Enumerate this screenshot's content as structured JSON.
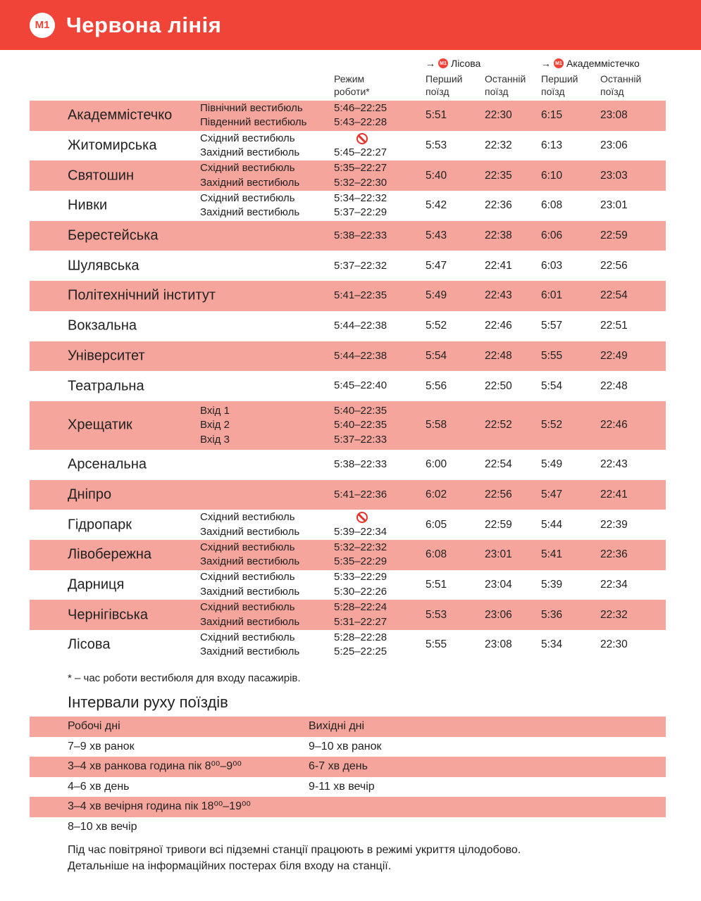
{
  "header": {
    "logo": "M1",
    "title": "Червона лінія"
  },
  "columns": {
    "regime": "Режим роботи*",
    "dir1": "Лісова",
    "dir2": "Академмістечко",
    "first": "Перший поїзд",
    "last": "Останній поїзд",
    "badge": "M1"
  },
  "stations": [
    {
      "name": "Академмістечко",
      "entrances": [
        {
          "name": "Північний вестибюль",
          "hours": "5:46–22:25"
        },
        {
          "name": "Південний вестибюль",
          "hours": "5:43–22:28"
        }
      ],
      "to_lisova": [
        "5:51",
        "22:30"
      ],
      "to_akadem": [
        "6:15",
        "23:08"
      ]
    },
    {
      "name": "Житомирська",
      "entrances": [
        {
          "name": "Східний вестибюль",
          "hours": null,
          "closed": true
        },
        {
          "name": "Західний вестибюль",
          "hours": "5:45–22:27"
        }
      ],
      "to_lisova": [
        "5:53",
        "22:32"
      ],
      "to_akadem": [
        "6:13",
        "23:06"
      ]
    },
    {
      "name": "Святошин",
      "entrances": [
        {
          "name": "Східний вестибюль",
          "hours": "5:35–22:27"
        },
        {
          "name": "Західний вестибюль",
          "hours": "5:32–22:30"
        }
      ],
      "to_lisova": [
        "5:40",
        "22:35"
      ],
      "to_akadem": [
        "6:10",
        "23:03"
      ]
    },
    {
      "name": "Нивки",
      "entrances": [
        {
          "name": "Східний вестибюль",
          "hours": "5:34–22:32"
        },
        {
          "name": "Західний вестибюль",
          "hours": "5:37–22:29"
        }
      ],
      "to_lisova": [
        "5:42",
        "22:36"
      ],
      "to_akadem": [
        "6:08",
        "23:01"
      ]
    },
    {
      "name": "Берестейська",
      "entrances": [
        {
          "name": "",
          "hours": "5:38–22:33"
        }
      ],
      "to_lisova": [
        "5:43",
        "22:38"
      ],
      "to_akadem": [
        "6:06",
        "22:59"
      ]
    },
    {
      "name": "Шулявська",
      "entrances": [
        {
          "name": "",
          "hours": "5:37–22:32"
        }
      ],
      "to_lisova": [
        "5:47",
        "22:41"
      ],
      "to_akadem": [
        "6:03",
        "22:56"
      ]
    },
    {
      "name": "Політехнічний інститут",
      "entrances": [
        {
          "name": "",
          "hours": "5:41–22:35"
        }
      ],
      "to_lisova": [
        "5:49",
        "22:43"
      ],
      "to_akadem": [
        "6:01",
        "22:54"
      ]
    },
    {
      "name": "Вокзальна",
      "entrances": [
        {
          "name": "",
          "hours": "5:44–22:38"
        }
      ],
      "to_lisova": [
        "5:52",
        "22:46"
      ],
      "to_akadem": [
        "5:57",
        "22:51"
      ]
    },
    {
      "name": "Університет",
      "entrances": [
        {
          "name": "",
          "hours": "5:44–22:38"
        }
      ],
      "to_lisova": [
        "5:54",
        "22:48"
      ],
      "to_akadem": [
        "5:55",
        "22:49"
      ]
    },
    {
      "name": "Театральна",
      "entrances": [
        {
          "name": "",
          "hours": "5:45–22:40"
        }
      ],
      "to_lisova": [
        "5:56",
        "22:50"
      ],
      "to_akadem": [
        "5:54",
        "22:48"
      ]
    },
    {
      "name": "Хрещатик",
      "entrances": [
        {
          "name": "Вхід 1",
          "hours": "5:40–22:35"
        },
        {
          "name": "Вхід 2",
          "hours": "5:40–22:35"
        },
        {
          "name": "Вхід 3",
          "hours": "5:37–22:33"
        }
      ],
      "to_lisova": [
        "5:58",
        "22:52"
      ],
      "to_akadem": [
        "5:52",
        "22:46"
      ]
    },
    {
      "name": "Арсенальна",
      "entrances": [
        {
          "name": "",
          "hours": "5:38–22:33"
        }
      ],
      "to_lisova": [
        "6:00",
        "22:54"
      ],
      "to_akadem": [
        "5:49",
        "22:43"
      ]
    },
    {
      "name": "Дніпро",
      "entrances": [
        {
          "name": "",
          "hours": "5:41–22:36"
        }
      ],
      "to_lisova": [
        "6:02",
        "22:56"
      ],
      "to_akadem": [
        "5:47",
        "22:41"
      ]
    },
    {
      "name": "Гідропарк",
      "entrances": [
        {
          "name": "Східний вестибюль",
          "hours": null,
          "closed": true
        },
        {
          "name": "Західний вестибюль",
          "hours": "5:39–22:34"
        }
      ],
      "to_lisova": [
        "6:05",
        "22:59"
      ],
      "to_akadem": [
        "5:44",
        "22:39"
      ]
    },
    {
      "name": "Лівобережна",
      "entrances": [
        {
          "name": "Східний вестибюль",
          "hours": "5:32–22:32"
        },
        {
          "name": "Західний вестибюль",
          "hours": "5:35–22:29"
        }
      ],
      "to_lisova": [
        "6:08",
        "23:01"
      ],
      "to_akadem": [
        "5:41",
        "22:36"
      ]
    },
    {
      "name": "Дарниця",
      "entrances": [
        {
          "name": "Східний вестибюль",
          "hours": "5:33–22:29"
        },
        {
          "name": "Західний вестибюль",
          "hours": "5:30–22:26"
        }
      ],
      "to_lisova": [
        "5:51",
        "23:04"
      ],
      "to_akadem": [
        "5:39",
        "22:34"
      ]
    },
    {
      "name": "Чернігівська",
      "entrances": [
        {
          "name": "Східний вестибюль",
          "hours": "5:28–22:24"
        },
        {
          "name": "Західний вестибюль",
          "hours": "5:31–22:27"
        }
      ],
      "to_lisova": [
        "5:53",
        "23:06"
      ],
      "to_akadem": [
        "5:36",
        "22:32"
      ]
    },
    {
      "name": "Лісова",
      "entrances": [
        {
          "name": "Східний вестибюль",
          "hours": "5:28–22:28"
        },
        {
          "name": "Західний вестибюль",
          "hours": "5:25–22:25"
        }
      ],
      "to_lisova": [
        "5:55",
        "23:08"
      ],
      "to_akadem": [
        "5:34",
        "22:30"
      ]
    }
  ],
  "note": "* – час роботи вестибюля для входу пасажирів.",
  "intervals": {
    "title": "Інтервали руху поїздів",
    "rows": [
      [
        "Робочі дні",
        "Вихідні дні"
      ],
      [
        "7–9 хв ранок",
        "9–10 хв ранок"
      ],
      [
        "3–4 хв ранкова година пік 8⁰⁰–9⁰⁰",
        "6-7 хв день"
      ],
      [
        "4–6 хв день",
        "9-11 хв вечір"
      ],
      [
        "3–4 хв вечірня година пік 18⁰⁰–19⁰⁰",
        ""
      ],
      [
        "8–10 хв вечір",
        ""
      ]
    ]
  },
  "footer": [
    "Під час повітряної тривоги всі підземні станції працюють в режимі укриття цілодобово.",
    "Детальніше на інформаційних постерах біля входу на станції."
  ]
}
